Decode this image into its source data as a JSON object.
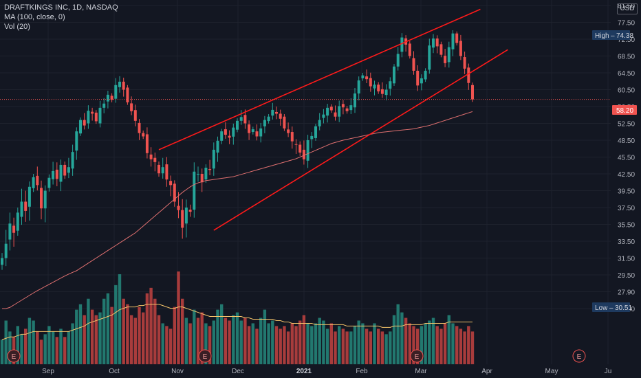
{
  "legend": {
    "symbol": "DRAFTKINGS INC, 1D, NASDAQ",
    "ma": "MA (100, close, 0)",
    "vol": "Vol (20)"
  },
  "currency_button": "USD",
  "chart_data": {
    "type": "candlestick",
    "title": "DRAFTKINGS INC, 1D, NASDAQ",
    "ylim": [
      25.5,
      81.5
    ],
    "y_ticks": [
      "81.50",
      "77.50",
      "72.50",
      "68.50",
      "64.50",
      "60.50",
      "56.50",
      "52.50",
      "48.50",
      "45.50",
      "42.50",
      "39.50",
      "37.50",
      "35.50",
      "33.50",
      "31.50",
      "29.50",
      "27.90",
      "26.50"
    ],
    "x_labels": [
      "Sep",
      "Oct",
      "Nov",
      "Dec",
      "2021",
      "Feb",
      "Mar",
      "Apr",
      "May",
      "Ju"
    ],
    "last_price": "58.20",
    "high_label": "High",
    "high_value": "74.38",
    "low_label": "Low",
    "low_value": "30.51",
    "earnings_marker": "E",
    "colors": {
      "up": "#26a69a",
      "down": "#ef5350",
      "ma": "#e07070",
      "vol_ma": "#f5c46a",
      "channel": "#ff1a1a"
    },
    "closes": [
      31.5,
      33.2,
      35.6,
      34.5,
      36.9,
      38.2,
      37.1,
      40.2,
      41.9,
      40.5,
      37.4,
      39.5,
      41.8,
      43.0,
      41.6,
      44.1,
      42.2,
      43.7,
      46.4,
      50.6,
      53.3,
      52.0,
      55.5,
      54.8,
      53.0,
      56.2,
      57.2,
      59.3,
      58.1,
      61.6,
      62.4,
      60.5,
      57.5,
      55.4,
      53.1,
      50.2,
      49.4,
      46.2,
      45.1,
      44.6,
      42.6,
      43.7,
      41.5,
      40.5,
      38.2,
      37.2,
      35.1,
      37.5,
      37.0,
      42.9,
      42.5,
      41.0,
      43.6,
      43.2,
      46.8,
      48.4,
      50.6,
      49.8,
      49.1,
      51.5,
      53.1,
      54.0,
      52.5,
      50.2,
      51.1,
      49.4,
      51.3,
      53.3,
      54.1,
      55.7,
      54.8,
      53.6,
      51.3,
      50.2,
      48.3,
      47.7,
      46.3,
      45.1,
      48.5,
      49.5,
      51.8,
      53.3,
      54.6,
      56.2,
      55.6,
      54.1,
      56.6,
      56.3,
      55.4,
      56.8,
      59.6,
      62.7,
      63.9,
      63.0,
      61.3,
      61.7,
      60.1,
      59.5,
      60.5,
      62.5,
      66.0,
      69.0,
      73.0,
      71.2,
      68.5,
      65.0,
      61.5,
      63.2,
      65.0,
      71.0,
      72.7,
      70.8,
      68.8,
      66.8,
      70.6,
      74.2,
      71.6,
      68.5,
      65.5,
      62.1,
      58.2
    ],
    "volume": [
      9,
      16,
      12,
      10,
      14,
      11,
      13,
      17,
      16,
      12,
      9,
      11,
      14,
      12,
      10,
      13,
      10,
      12,
      15,
      20,
      22,
      18,
      24,
      20,
      18,
      19,
      24,
      26,
      21,
      29,
      33,
      24,
      22,
      18,
      17,
      21,
      19,
      26,
      28,
      24,
      18,
      15,
      14,
      13,
      21,
      34,
      24,
      17,
      15,
      20,
      17,
      19,
      15,
      14,
      16,
      20,
      22,
      17,
      16,
      18,
      19,
      16,
      17,
      14,
      15,
      13,
      17,
      20,
      15,
      16,
      14,
      13,
      14,
      12,
      15,
      14,
      16,
      18,
      15,
      14,
      15,
      17,
      16,
      13,
      15,
      12,
      14,
      13,
      12,
      12,
      14,
      16,
      15,
      13,
      12,
      15,
      13,
      12,
      11,
      12,
      18,
      22,
      19,
      17,
      15,
      14,
      13,
      14,
      15,
      16,
      17,
      14,
      13,
      15,
      18,
      15,
      14,
      13,
      12,
      14,
      12
    ],
    "volume_ma": [
      9,
      9.5,
      10,
      10,
      10.5,
      11,
      11,
      11.5,
      12,
      12,
      12,
      12,
      12,
      12,
      12,
      12,
      12,
      12,
      12.5,
      13,
      13.5,
      14,
      15,
      15.5,
      16,
      16.5,
      17,
      17.5,
      18,
      19,
      20,
      20.5,
      21,
      21,
      21,
      21.5,
      21.5,
      22,
      22,
      22,
      22,
      21.5,
      21,
      20.5,
      20.5,
      21,
      21,
      20.5,
      20,
      19.5,
      19,
      18.5,
      18,
      17.5,
      17.5,
      17.5,
      17.5,
      17.5,
      17.5,
      17.5,
      17.5,
      17.5,
      17,
      17,
      16.5,
      16.5,
      16.5,
      16.5,
      16.5,
      16.5,
      16,
      16,
      15.5,
      15.5,
      15,
      15,
      15,
      15,
      15,
      15,
      14.5,
      14.5,
      14.5,
      14.5,
      14.5,
      14.5,
      14.5,
      14.5,
      14,
      14,
      14,
      14,
      14,
      14,
      14,
      14,
      14,
      13.5,
      13.5,
      13.5,
      14,
      14,
      14,
      14.5,
      14.5,
      14.5,
      14.5,
      14.5,
      15,
      15,
      15,
      15,
      15,
      15,
      15.5,
      15.5,
      15.5,
      15.5,
      15.5,
      15.5,
      15.5
    ],
    "ma100": [
      26.2,
      26.4,
      26.6,
      26.8,
      27.0,
      27.2,
      27.4,
      27.6,
      27.8,
      28.0,
      28.2,
      28.4,
      28.6,
      28.8,
      29.0,
      29.2,
      29.4,
      29.6,
      29.8,
      30.0,
      30.3,
      30.6,
      30.9,
      31.2,
      31.5,
      31.8,
      32.1,
      32.4,
      32.7,
      33.0,
      33.3,
      33.6,
      33.9,
      34.2,
      34.5,
      34.9,
      35.3,
      35.7,
      36.1,
      36.5,
      36.9,
      37.3,
      37.7,
      38.1,
      38.5,
      38.9,
      39.3,
      39.7,
      40.2,
      40.6,
      40.9,
      41.1,
      41.3,
      41.4,
      41.5,
      41.6,
      41.7,
      41.8,
      41.9,
      42.0,
      42.2,
      42.4,
      42.6,
      42.8,
      43.0,
      43.2,
      43.4,
      43.6,
      43.8,
      44.0,
      44.2,
      44.4,
      44.6,
      44.8,
      45.0,
      45.2,
      45.5,
      45.8,
      46.1,
      46.4,
      46.7,
      47.0,
      47.3,
      47.6,
      47.9,
      48.1,
      48.3,
      48.5,
      48.7,
      48.9,
      49.1,
      49.3,
      49.5,
      49.7,
      49.9,
      50.1,
      50.3,
      50.4,
      50.5,
      50.6,
      50.7,
      50.8,
      50.9,
      51.0,
      51.1,
      51.2,
      51.4,
      51.6,
      51.8,
      52.0,
      52.3,
      52.6,
      52.9,
      53.2,
      53.5,
      53.8,
      54.1,
      54.4,
      54.7,
      55.0,
      55.3
    ],
    "channel_upper": [
      [
        40,
        46.8
      ],
      [
        122,
        80.6
      ]
    ],
    "channel_lower": [
      [
        54,
        34.8
      ],
      [
        129,
        70.0
      ]
    ]
  }
}
